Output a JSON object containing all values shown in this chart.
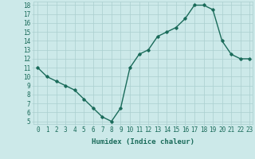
{
  "x": [
    0,
    1,
    2,
    3,
    4,
    5,
    6,
    7,
    8,
    9,
    10,
    11,
    12,
    13,
    14,
    15,
    16,
    17,
    18,
    19,
    20,
    21,
    22,
    23
  ],
  "y": [
    11,
    10,
    9.5,
    9,
    8.5,
    7.5,
    6.5,
    5.5,
    5,
    6.5,
    11,
    12.5,
    13,
    14.5,
    15,
    15.5,
    16.5,
    18,
    18,
    17.5,
    14,
    12.5,
    12,
    12
  ],
  "xlim": [
    -0.5,
    23.3
  ],
  "ylim": [
    4.7,
    18.4
  ],
  "yticks": [
    5,
    6,
    7,
    8,
    9,
    10,
    11,
    12,
    13,
    14,
    15,
    16,
    17,
    18
  ],
  "xticks": [
    0,
    1,
    2,
    3,
    4,
    5,
    6,
    7,
    8,
    9,
    10,
    11,
    12,
    13,
    14,
    15,
    16,
    17,
    18,
    19,
    20,
    21,
    22,
    23
  ],
  "xlabel": "Humidex (Indice chaleur)",
  "line_color": "#1a6b5a",
  "marker": "D",
  "marker_size": 1.8,
  "bg_color": "#cce9e9",
  "grid_color": "#aacfcf",
  "tick_label_color": "#1a6b5a",
  "xlabel_fontsize": 6.5,
  "tick_fontsize": 5.5,
  "line_width": 1.0
}
